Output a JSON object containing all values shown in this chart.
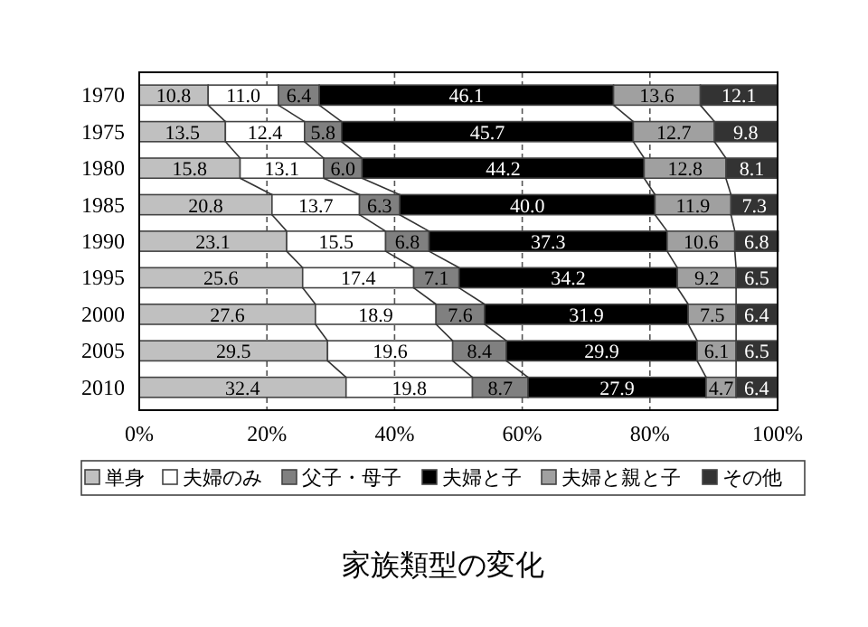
{
  "chart_data": {
    "type": "bar",
    "orientation": "horizontal",
    "stacked": true,
    "title": "家族類型の変化",
    "categories": [
      "1970",
      "1975",
      "1980",
      "1985",
      "1990",
      "1995",
      "2000",
      "2005",
      "2010"
    ],
    "series": [
      {
        "name": "単身",
        "color": "#c0c0c0",
        "values": [
          10.8,
          13.5,
          15.8,
          20.8,
          23.1,
          25.6,
          27.6,
          29.5,
          32.4
        ]
      },
      {
        "name": "夫婦のみ",
        "color": "#ffffff",
        "values": [
          11.0,
          12.4,
          13.1,
          13.7,
          15.5,
          17.4,
          18.9,
          19.6,
          19.8
        ],
        "value_labels": [
          "11.0",
          "12.4",
          "13.1",
          "13.7",
          "15.5",
          "17.4",
          "18.9",
          "19.6",
          "19.8"
        ]
      },
      {
        "name": "父子・母子",
        "color": "#808080",
        "values": [
          6.4,
          5.8,
          6.0,
          6.3,
          6.8,
          7.1,
          7.6,
          8.4,
          8.7
        ],
        "value_labels": [
          "6.4",
          "5.8",
          "6.0",
          "6.3",
          "6.8",
          "7.1",
          "7.6",
          "8.4",
          "8.7"
        ]
      },
      {
        "name": "夫婦と子",
        "color": "#000000",
        "values": [
          46.1,
          45.7,
          44.2,
          40.0,
          37.3,
          34.2,
          31.9,
          29.9,
          27.9
        ],
        "value_labels": [
          "46.1",
          "45.7",
          "44.2",
          "40.0",
          "37.3",
          "34.2",
          "31.9",
          "29.9",
          "27.9"
        ]
      },
      {
        "name": "夫婦と親と子",
        "color": "#a0a0a0",
        "values": [
          13.6,
          12.7,
          12.8,
          11.9,
          10.6,
          9.2,
          7.5,
          6.1,
          4.7
        ]
      },
      {
        "name": "その他",
        "color": "#333333",
        "values": [
          12.1,
          9.8,
          8.1,
          7.3,
          6.8,
          6.5,
          6.4,
          6.5,
          6.4
        ]
      }
    ],
    "xlim": [
      0,
      100
    ],
    "xticks": [
      {
        "value": 0,
        "label": "0%"
      },
      {
        "value": 20,
        "label": "20%"
      },
      {
        "value": 40,
        "label": "40%"
      },
      {
        "value": 60,
        "label": "60%"
      },
      {
        "value": 80,
        "label": "80%"
      },
      {
        "value": 100,
        "label": "100%"
      }
    ],
    "grid": "x",
    "data_labels": true,
    "legend": "bottom"
  }
}
